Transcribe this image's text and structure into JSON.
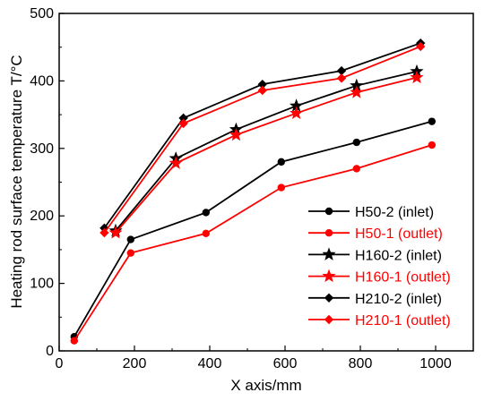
{
  "chart_data": {
    "type": "line",
    "title": "",
    "xlabel": "X axis/mm",
    "ylabel": "Heating rod surface temperature T/°C",
    "xlim": [
      0,
      1100
    ],
    "ylim": [
      0,
      500
    ],
    "xticks": [
      0,
      200,
      400,
      600,
      800,
      1000
    ],
    "yticks": [
      0,
      100,
      200,
      300,
      400,
      500
    ],
    "grid": false,
    "legend_position": "lower-right",
    "series": [
      {
        "name": "H50-2 (inlet)",
        "color": "#000000",
        "marker": "circle",
        "points": [
          [
            40,
            21
          ],
          [
            190,
            165
          ],
          [
            390,
            205
          ],
          [
            590,
            280
          ],
          [
            790,
            309
          ],
          [
            990,
            340
          ]
        ]
      },
      {
        "name": "H50-1 (outlet)",
        "color": "#ff0000",
        "marker": "circle",
        "points": [
          [
            40,
            15
          ],
          [
            190,
            145
          ],
          [
            390,
            174
          ],
          [
            590,
            242
          ],
          [
            790,
            270
          ],
          [
            990,
            305
          ]
        ]
      },
      {
        "name": "H160-2 (inlet)",
        "color": "#000000",
        "marker": "star",
        "points": [
          [
            150,
            178
          ],
          [
            310,
            285
          ],
          [
            470,
            328
          ],
          [
            630,
            363
          ],
          [
            790,
            393
          ],
          [
            950,
            414
          ]
        ]
      },
      {
        "name": "H160-1 (outlet)",
        "color": "#ff0000",
        "marker": "star",
        "points": [
          [
            150,
            175
          ],
          [
            310,
            278
          ],
          [
            470,
            320
          ],
          [
            630,
            352
          ],
          [
            790,
            383
          ],
          [
            950,
            405
          ]
        ]
      },
      {
        "name": "H210-2 (inlet)",
        "color": "#000000",
        "marker": "diamond",
        "points": [
          [
            120,
            182
          ],
          [
            330,
            345
          ],
          [
            540,
            395
          ],
          [
            750,
            415
          ],
          [
            960,
            456
          ]
        ]
      },
      {
        "name": "H210-1 (outlet)",
        "color": "#ff0000",
        "marker": "diamond",
        "points": [
          [
            120,
            175
          ],
          [
            330,
            337
          ],
          [
            540,
            386
          ],
          [
            750,
            404
          ],
          [
            960,
            451
          ]
        ]
      }
    ]
  }
}
